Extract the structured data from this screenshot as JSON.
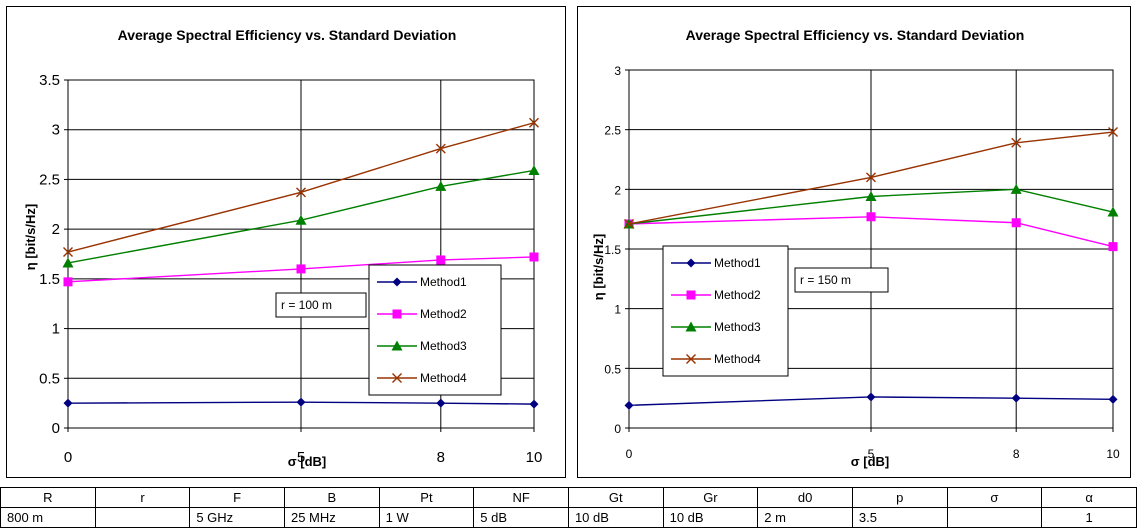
{
  "chart_data": [
    {
      "type": "line",
      "title": "Average Spectral Efficiency vs. Standard Deviation",
      "xlabel": "σ [dB]",
      "ylabel": "η [bit/s/Hz]",
      "x": [
        0,
        5,
        8,
        10
      ],
      "x_ticks": [
        "0",
        "5",
        "8",
        "10"
      ],
      "ylim": [
        0,
        3.5
      ],
      "y_ticks": [
        "0",
        "0.5",
        "1",
        "1.5",
        "2",
        "2.5",
        "3",
        "3.5"
      ],
      "grid": true,
      "legend_position": "bottom-right",
      "annotation": "r = 100 m",
      "series": [
        {
          "name": "Method1",
          "color": "#000080",
          "marker": "diamond",
          "values": [
            0.25,
            0.26,
            0.25,
            0.24
          ]
        },
        {
          "name": "Method2",
          "color": "#FF00FF",
          "marker": "square",
          "values": [
            1.47,
            1.6,
            1.69,
            1.72
          ]
        },
        {
          "name": "Method3",
          "color": "#008000",
          "marker": "triangle",
          "values": [
            1.66,
            2.09,
            2.43,
            2.59
          ]
        },
        {
          "name": "Method4",
          "color": "#993300",
          "marker": "x",
          "values": [
            1.77,
            2.37,
            2.81,
            3.07
          ]
        }
      ]
    },
    {
      "type": "line",
      "title": "Average Spectral Efficiency vs. Standard Deviation",
      "xlabel": "σ [dB]",
      "ylabel": "η [bit/s/Hz]",
      "x": [
        0,
        5,
        8,
        10
      ],
      "x_ticks": [
        "0",
        "5",
        "8",
        "10"
      ],
      "ylim": [
        0,
        3
      ],
      "y_ticks": [
        "0",
        "0.5",
        "1",
        "1.5",
        "2",
        "2.5",
        "3"
      ],
      "grid": true,
      "legend_position": "center-left",
      "annotation": "r = 150 m",
      "series": [
        {
          "name": "Method1",
          "color": "#000080",
          "marker": "diamond",
          "values": [
            0.19,
            0.26,
            0.25,
            0.24
          ]
        },
        {
          "name": "Method2",
          "color": "#FF00FF",
          "marker": "square",
          "values": [
            1.71,
            1.77,
            1.72,
            1.52
          ]
        },
        {
          "name": "Method3",
          "color": "#008000",
          "marker": "triangle",
          "values": [
            1.71,
            1.94,
            2.0,
            1.81
          ]
        },
        {
          "name": "Method4",
          "color": "#993300",
          "marker": "x",
          "values": [
            1.71,
            2.1,
            2.39,
            2.48
          ]
        }
      ]
    }
  ],
  "params_table": {
    "headers": [
      "R",
      "r",
      "F",
      "B",
      "Pt",
      "NF",
      "Gt",
      "Gr",
      "d0",
      "p",
      "σ",
      "α"
    ],
    "values": [
      "800 m",
      "",
      "5 GHz",
      "25 MHz",
      "1 W",
      "5 dB",
      "10 dB",
      "10 dB",
      "2 m",
      "3.5",
      "",
      "1"
    ]
  }
}
